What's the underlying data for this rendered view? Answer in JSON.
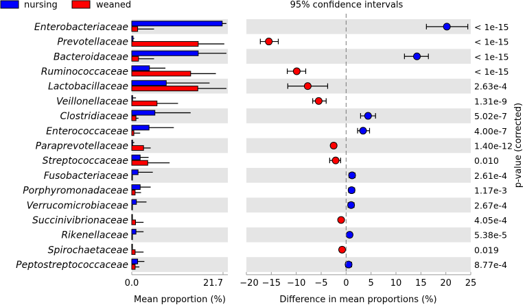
{
  "chart_data": {
    "type": "bar",
    "title": "95% confidence intervals",
    "legend": {
      "placement": "top-left",
      "entries": [
        {
          "name": "nursing",
          "color": "#0000ff"
        },
        {
          "name": "weaned",
          "color": "#ff0000"
        }
      ]
    },
    "categories": [
      "Enterobacteriaceae",
      "Prevotellaceae",
      "Bacteroidaceae",
      "Ruminococcaceae",
      "Lactobacillaceae",
      "Veillonellaceae",
      "Clostridiaceae",
      "Enterococcaceae",
      "Paraprevotellaceae",
      "Streptococcaceae",
      "Fusobacteriaceae",
      "Porphyromonadaceae",
      "Verrucomicrobiaceae",
      "Succinivibrionaceae",
      "Rikenellaceae",
      "Spirochaetaceae",
      "Peptostreptococcaceae"
    ],
    "p_values": [
      "< 1e-15",
      "< 1e-15",
      "< 1e-15",
      "< 1e-15",
      "2.63e-4",
      "1.31e-9",
      "5.02e-7",
      "4.00e-7",
      "1.40e-12",
      "0.010",
      "2.61e-4",
      "1.17e-3",
      "2.67e-4",
      "4.05e-4",
      "5.38e-5",
      "0.019",
      "8.77e-4"
    ],
    "ylabel_right": "p-value (corrected)",
    "left_panel": {
      "xlabel": "Mean proportion (%)",
      "xlim": [
        0,
        21.7
      ],
      "xticks": [
        "0.0",
        "21.7"
      ],
      "series": [
        {
          "name": "nursing",
          "color": "#0000ff",
          "values": [
            21.5,
            0.3,
            15.8,
            4.2,
            8.2,
            0.2,
            5.5,
            4.1,
            0.2,
            2.0,
            1.5,
            2.0,
            1.1,
            0.1,
            1.0,
            0.1,
            1.4
          ],
          "err_high": [
            22.5,
            0.6,
            22.5,
            8.0,
            18.5,
            1.0,
            14.0,
            10.0,
            0.6,
            4.0,
            5.0,
            4.5,
            3.5,
            0.2,
            2.8,
            0.2,
            3.0
          ]
        },
        {
          "name": "weaned",
          "color": "#ff0000",
          "values": [
            1.4,
            15.8,
            1.6,
            14.0,
            15.7,
            6.0,
            1.0,
            0.5,
            2.8,
            3.8,
            0.1,
            0.8,
            0.1,
            0.9,
            0.1,
            0.8,
            0.8
          ],
          "err_high": [
            5.3,
            22.0,
            5.3,
            20.0,
            22.5,
            11.0,
            1.6,
            2.0,
            4.5,
            9.0,
            0.2,
            2.2,
            0.2,
            2.8,
            0.2,
            2.8,
            1.8
          ]
        }
      ]
    },
    "right_panel": {
      "type": "scatter",
      "xlabel": "Difference in mean proportions (%)",
      "xlim": [
        -20,
        25
      ],
      "xticks": [
        -20,
        -15,
        -10,
        -5,
        0,
        5,
        10,
        15,
        20,
        25
      ],
      "xtick_labels": [
        "−20",
        "−15",
        "−10",
        "−5",
        "0",
        "5",
        "10",
        "15",
        "20",
        "25"
      ],
      "diff": [
        20.2,
        -15.5,
        14.2,
        -9.9,
        -7.7,
        -5.5,
        4.4,
        3.4,
        -2.5,
        -2.1,
        1.2,
        1.1,
        1.0,
        -1.0,
        0.7,
        -0.8,
        0.5
      ],
      "ci_low": [
        16.1,
        -17.2,
        11.7,
        -11.8,
        -11.7,
        -6.7,
        2.9,
        2.3,
        -3.0,
        -3.3,
        0.6,
        0.5,
        0.4,
        -1.4,
        0.2,
        -1.3,
        -0.1
      ],
      "ci_high": [
        24.4,
        -13.6,
        16.5,
        -8.1,
        -3.7,
        -4.0,
        5.9,
        4.7,
        -2.0,
        -1.1,
        1.8,
        1.7,
        1.6,
        -0.6,
        1.2,
        -0.3,
        1.1
      ]
    }
  }
}
